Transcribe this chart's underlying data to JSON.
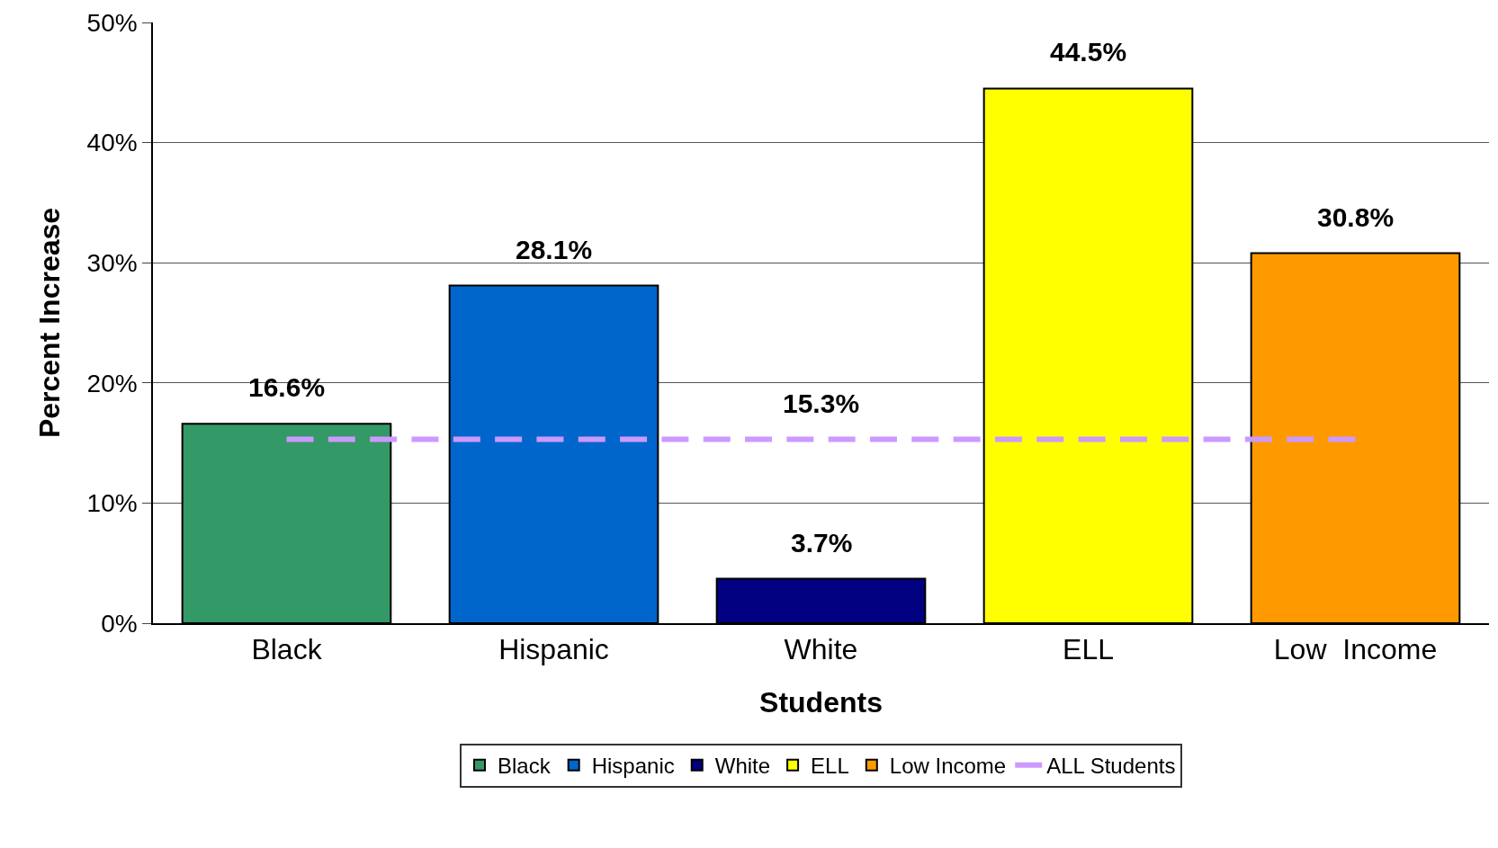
{
  "chart_data": {
    "type": "bar",
    "xlabel": "Students",
    "ylabel": "Percent Increase",
    "categories": [
      "Black",
      "Hispanic",
      "White",
      "ELL",
      "Low  Income"
    ],
    "series": [
      {
        "name": "Black",
        "color": "#339966",
        "values": [
          16.6,
          null,
          null,
          null,
          null
        ],
        "value_labels": [
          "16.6%",
          null,
          null,
          null,
          null
        ]
      },
      {
        "name": "Hispanic",
        "color": "#0066cc",
        "values": [
          null,
          28.1,
          null,
          null,
          null
        ],
        "value_labels": [
          null,
          "28.1%",
          null,
          null,
          null
        ]
      },
      {
        "name": "White",
        "color": "#000080",
        "values": [
          null,
          null,
          3.7,
          null,
          null
        ],
        "value_labels": [
          null,
          null,
          "3.7%",
          null,
          null
        ]
      },
      {
        "name": "ELL",
        "color": "#ffff00",
        "values": [
          null,
          null,
          null,
          44.5,
          null
        ],
        "value_labels": [
          null,
          null,
          null,
          "44.5%",
          null
        ]
      },
      {
        "name": "Low Income",
        "color": "#ff9900",
        "values": [
          null,
          null,
          null,
          null,
          30.8
        ],
        "value_labels": [
          null,
          null,
          null,
          null,
          "30.8%"
        ]
      },
      {
        "name": "ALL Students",
        "type": "line",
        "color": "#cc99ff",
        "line_style": "dashed",
        "marker": "none",
        "values": [
          15.3,
          15.3,
          15.3,
          15.3,
          15.3
        ],
        "value_labels": [
          null,
          null,
          "15.3%",
          null,
          null
        ]
      }
    ],
    "ylim": [
      0,
      50
    ],
    "yticks": [
      {
        "value": 0,
        "label": "0%"
      },
      {
        "value": 10,
        "label": "10%"
      },
      {
        "value": 20,
        "label": "20%"
      },
      {
        "value": 30,
        "label": "30%"
      },
      {
        "value": 40,
        "label": "40%"
      },
      {
        "value": 50,
        "label": "50%"
      }
    ],
    "grid": "y",
    "legend": "bottom"
  }
}
